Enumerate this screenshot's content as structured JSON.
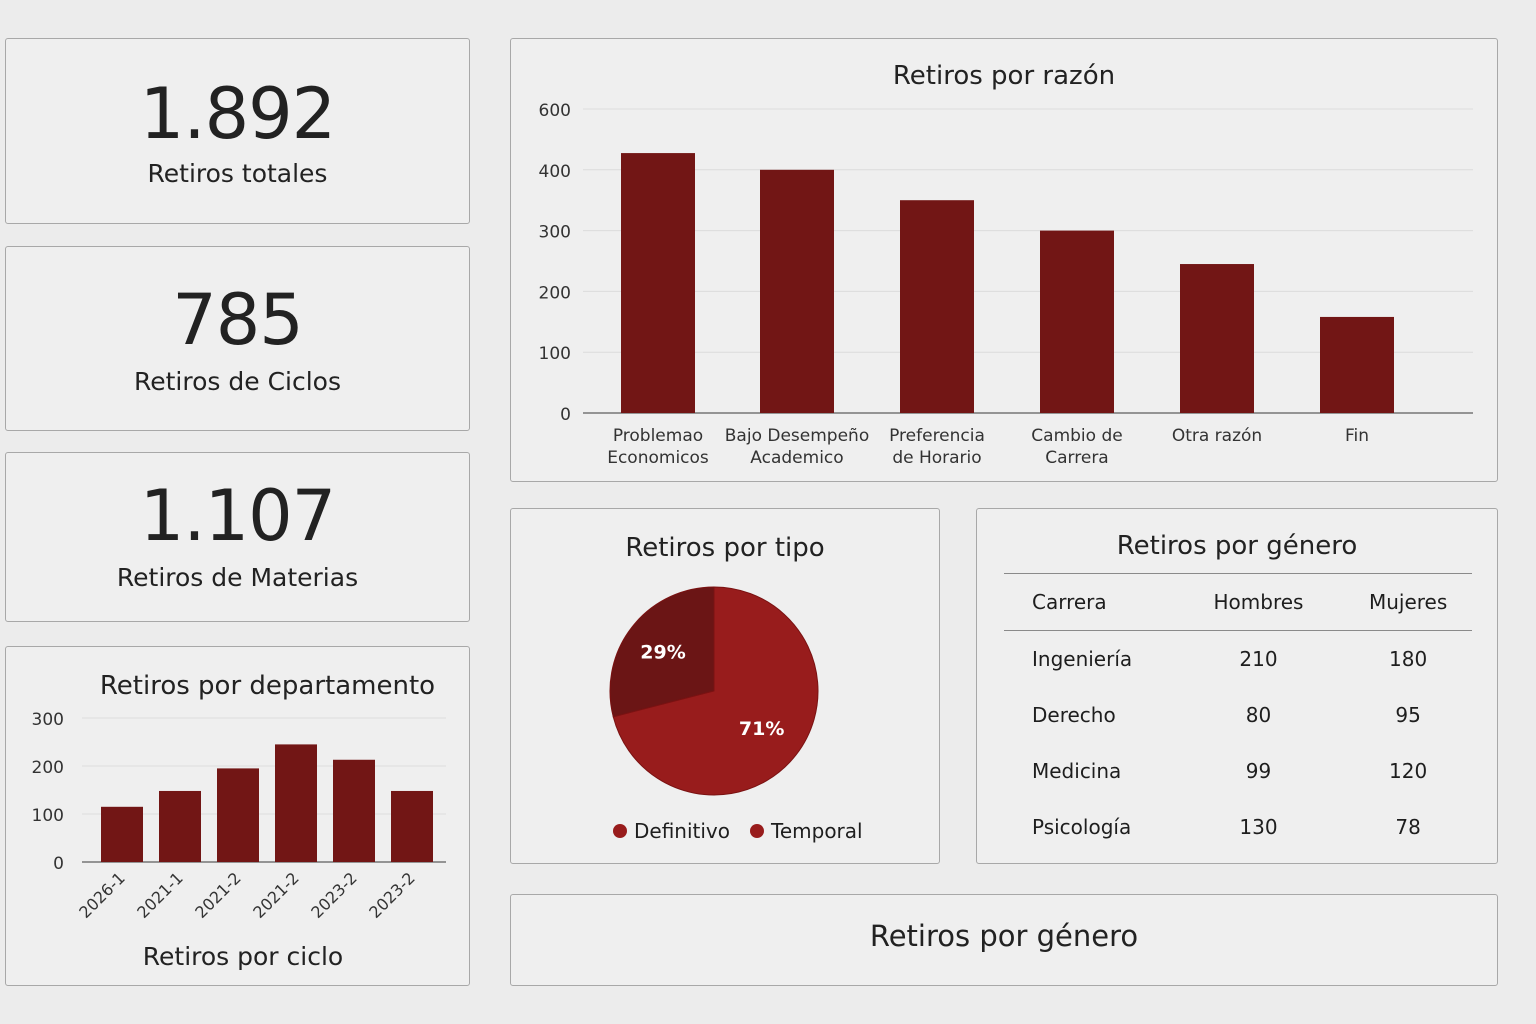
{
  "kpis": [
    {
      "value": "1.892",
      "label": "Retiros totales"
    },
    {
      "value": "785",
      "label": "Retiros de Ciclos"
    },
    {
      "value": "1.107",
      "label": "Retiros de Materias"
    }
  ],
  "colors": {
    "bar": "#721615",
    "pie_dark": "#6b1515",
    "pie_light": "#981c1c"
  },
  "chart_data": [
    {
      "id": "razon",
      "type": "bar",
      "title": "Retiros por razón",
      "categories": [
        "Problemao Economicos",
        "Bajo Desempeño Academico",
        "Preferencia de Horario",
        "Cambio de Carrera",
        "Otra razón",
        "Fin"
      ],
      "category_lines": [
        [
          "Problemao",
          "Economicos"
        ],
        [
          "Bajo Desempeño",
          "Academico"
        ],
        [
          "Preferencia",
          "de Horario"
        ],
        [
          "Cambio de",
          "Carrera"
        ],
        [
          "Otra razón"
        ],
        [
          "Fin"
        ]
      ],
      "values": [
        455,
        400,
        350,
        300,
        245,
        158
      ],
      "yticks": [
        0,
        100,
        200,
        300,
        400,
        600
      ],
      "grid": true
    },
    {
      "id": "departamento",
      "type": "bar",
      "title": "Retiros por departamento",
      "xlabel": "Retiros por ciclo",
      "categories": [
        "2026-1",
        "2021-1",
        "2021-2",
        "2021-2",
        "2023-2",
        "2023-2"
      ],
      "values": [
        115,
        148,
        195,
        245,
        213,
        148
      ],
      "yticks": [
        0,
        100,
        200,
        300
      ],
      "ylim": [
        0,
        300
      ],
      "grid": true
    },
    {
      "id": "tipo",
      "type": "pie",
      "title": "Retiros por tipo",
      "slices": [
        {
          "name": "Definitivo",
          "value": 29,
          "label": "29%"
        },
        {
          "name": "Temporal",
          "value": 71,
          "label": "71%"
        }
      ],
      "legend": "bottom"
    },
    {
      "id": "genero",
      "type": "table",
      "title": "Retiros por género",
      "columns": [
        "Carrera",
        "Hombres",
        "Mujeres"
      ],
      "rows": [
        [
          "Ingeniería",
          "210",
          "180"
        ],
        [
          "Derecho",
          "80",
          "95"
        ],
        [
          "Medicina",
          "99",
          "120"
        ],
        [
          "Psicología",
          "130",
          "78"
        ]
      ]
    }
  ],
  "footer_panel": {
    "title": "Retiros por género"
  }
}
